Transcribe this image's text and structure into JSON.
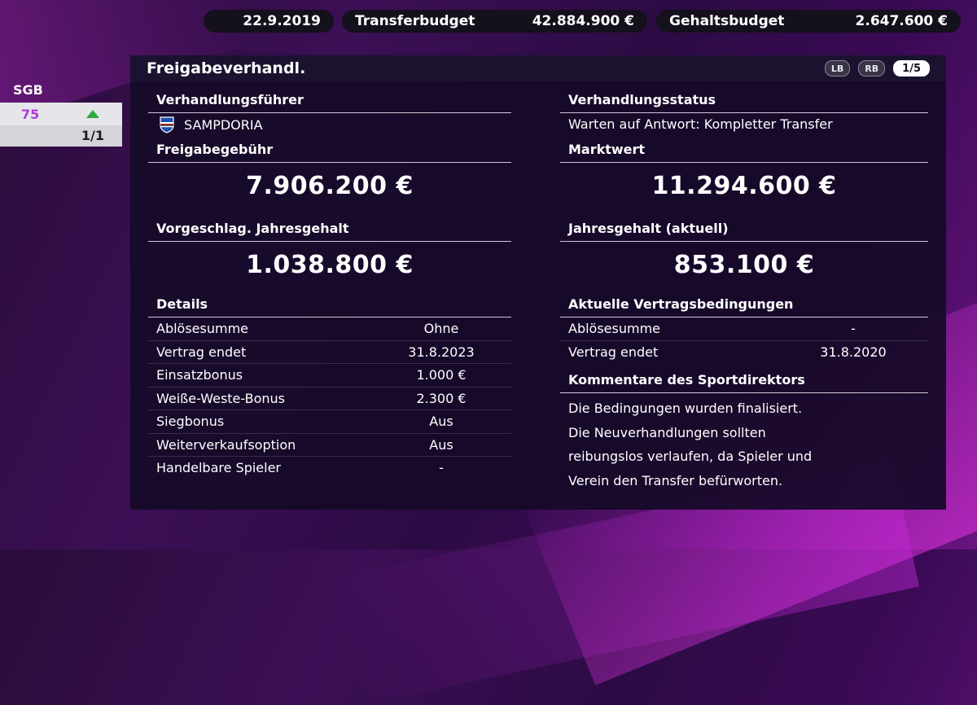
{
  "topbar": {
    "date": "22.9.2019",
    "transfer_label": "Transferbudget",
    "transfer_value": "42.884.900 €",
    "salary_label": "Gehaltsbudget",
    "salary_value": "2.647.600 €"
  },
  "left": {
    "label": "SGB",
    "value": "75",
    "page": "1/1"
  },
  "panel": {
    "title": "Freigabeverhandl.",
    "btn_lb": "LB",
    "btn_rb": "RB",
    "page": "1/5"
  },
  "negotiator": {
    "heading": "Verhandlungsführer",
    "club": "SAMPDORIA"
  },
  "status": {
    "heading": "Verhandlungsstatus",
    "text": "Warten auf Antwort: Kompletter Transfer"
  },
  "release_fee": {
    "heading": "Freigabegebühr",
    "value": "7.906.200 €"
  },
  "market_value": {
    "heading": "Marktwert",
    "value": "11.294.600 €"
  },
  "proposed_salary": {
    "heading": "Vorgeschlag. Jahresgehalt",
    "value": "1.038.800 €"
  },
  "current_salary": {
    "heading": "Jahresgehalt (aktuell)",
    "value": "853.100 €"
  },
  "details": {
    "heading": "Details",
    "rows": [
      {
        "key": "Ablösesumme",
        "value": "Ohne"
      },
      {
        "key": "Vertrag endet",
        "value": "31.8.2023"
      },
      {
        "key": "Einsatzbonus",
        "value": "1.000 €"
      },
      {
        "key": "Weiße-Weste-Bonus",
        "value": "2.300 €"
      },
      {
        "key": "Siegbonus",
        "value": "Aus"
      },
      {
        "key": "Weiterverkaufsoption",
        "value": "Aus"
      },
      {
        "key": "Handelbare Spieler",
        "value": "-"
      }
    ]
  },
  "current_contract": {
    "heading": "Aktuelle Vertragsbedingungen",
    "rows": [
      {
        "key": "Ablösesumme",
        "value": "-"
      },
      {
        "key": "Vertrag endet",
        "value": "31.8.2020"
      }
    ]
  },
  "director": {
    "heading": "Kommentare des Sportdirektors",
    "lines": [
      "Die Bedingungen wurden finalisiert.",
      "Die Neuverhandlungen sollten",
      "reibungslos verlaufen, da Spieler und",
      "Verein den Transfer befürworten."
    ]
  }
}
